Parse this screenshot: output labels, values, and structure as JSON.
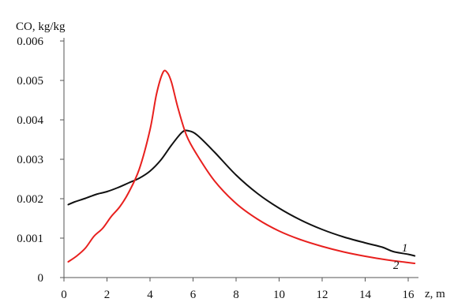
{
  "chart_data": {
    "type": "line",
    "ylabel": "CO, kg/kg",
    "xlabel": "z, m",
    "xlim": [
      0,
      16.8
    ],
    "ylim": [
      0,
      0.006
    ],
    "x_ticks": [
      "0",
      "2",
      "4",
      "6",
      "8",
      "10",
      "12",
      "14",
      "16"
    ],
    "y_ticks": [
      "0",
      "0.001",
      "0.002",
      "0.003",
      "0.004",
      "0.005",
      "0.006"
    ],
    "grid": false,
    "series": [
      {
        "name": "1",
        "color": "#111111",
        "label_at": [
          15.7,
          0.00066
        ],
        "x": [
          0.2,
          0.5,
          1.0,
          1.5,
          2.0,
          2.5,
          3.0,
          3.5,
          4.0,
          4.5,
          5.0,
          5.5,
          5.8,
          6.2,
          7.0,
          8.0,
          9.0,
          10.0,
          11.0,
          12.0,
          13.0,
          14.0,
          14.8,
          15.3,
          16.0,
          16.3
        ],
        "y": [
          0.00185,
          0.00192,
          0.00201,
          0.00211,
          0.00218,
          0.00228,
          0.0024,
          0.00252,
          0.0027,
          0.00298,
          0.00336,
          0.00369,
          0.00372,
          0.00361,
          0.00318,
          0.0026,
          0.00213,
          0.00176,
          0.00146,
          0.00122,
          0.00103,
          0.00088,
          0.00077,
          0.00066,
          0.00059,
          0.00055
        ]
      },
      {
        "name": "2",
        "color": "#e8201e",
        "label_at": [
          15.3,
          0.00022
        ],
        "x": [
          0.2,
          0.6,
          1.0,
          1.4,
          1.8,
          2.2,
          2.6,
          3.0,
          3.5,
          4.0,
          4.3,
          4.6,
          4.8,
          5.0,
          5.3,
          5.7,
          6.2,
          7.0,
          8.0,
          9.0,
          10.0,
          11.0,
          12.0,
          13.0,
          14.0,
          15.0,
          16.0,
          16.3
        ],
        "y": [
          0.0004,
          0.00055,
          0.00075,
          0.00105,
          0.00125,
          0.00155,
          0.0018,
          0.00215,
          0.00275,
          0.00375,
          0.00465,
          0.0052,
          0.0052,
          0.00495,
          0.0043,
          0.0036,
          0.0031,
          0.00245,
          0.00188,
          0.00148,
          0.00118,
          0.00096,
          0.00079,
          0.00065,
          0.00054,
          0.00045,
          0.00038,
          0.00036
        ]
      }
    ]
  }
}
